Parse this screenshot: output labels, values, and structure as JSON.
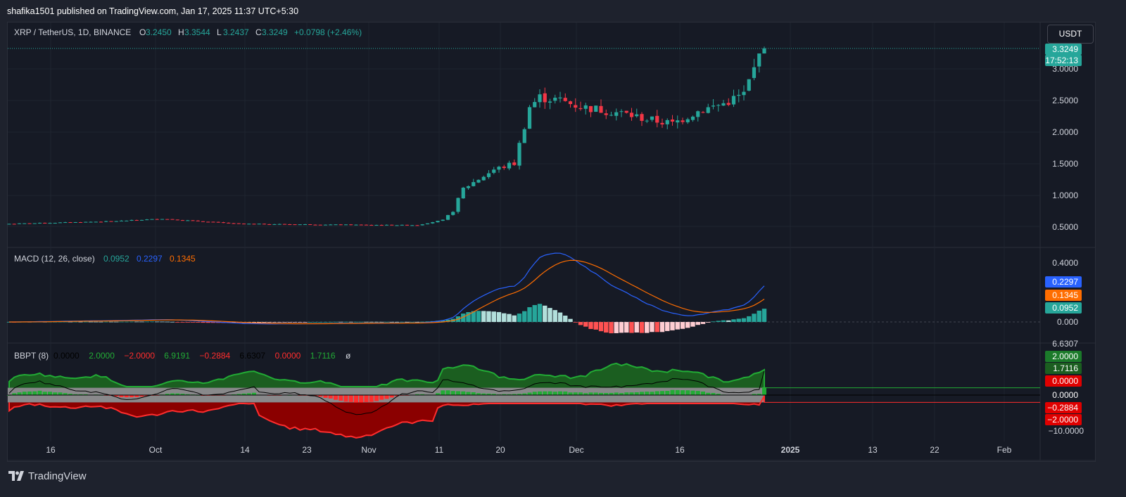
{
  "header": {
    "published_by": "shafika1501 published on TradingView.com, Jan 17, 2025 11:37 UTC+5:30"
  },
  "footer": {
    "brand": "TradingView"
  },
  "currency_button": "USDT",
  "colors": {
    "up": "#26a69a",
    "down": "#f23645",
    "macd_line": "#2962ff",
    "signal_line": "#ff6d00",
    "bbpt_up_fill": "#1b5e20",
    "bbpt_down_fill": "#8b0000",
    "bbpt_up_line": "#22ab35",
    "bbpt_down_line": "#ff2d2d"
  },
  "main_pane": {
    "symbol_legend": "XRP / TetherUS, 1D, BINANCE",
    "ohlc": [
      {
        "k": "O",
        "v": "3.2450"
      },
      {
        "k": "H",
        "v": "3.3544"
      },
      {
        "k": "L",
        "v": "3.2437"
      },
      {
        "k": "C",
        "v": "3.3249"
      }
    ],
    "change": "+0.0798 (+2.46%)",
    "price_ticks": [
      "3.0000",
      "2.5000",
      "2.0000",
      "1.5000",
      "1.0000",
      "0.5000"
    ],
    "last_price_label": "3.3249",
    "countdown_label": "17:52:13"
  },
  "macd_pane": {
    "title": "MACD (12, 26, close)",
    "values": [
      "0.0952",
      "0.2297",
      "0.1345"
    ],
    "ticks": [
      "0.4000",
      "0.000"
    ],
    "labels": {
      "macd": "0.2297",
      "signal": "0.1345",
      "hist": "0.0952"
    }
  },
  "bbpt_pane": {
    "title": "BBPT (8)",
    "values": [
      {
        "v": "0.0000",
        "c": "#000000"
      },
      {
        "v": "2.0000",
        "c": "#22ab35"
      },
      {
        "v": "−2.0000",
        "c": "#ff2d2d"
      },
      {
        "v": "6.9191",
        "c": "#22ab35"
      },
      {
        "v": "−0.2884",
        "c": "#ff2d2d"
      },
      {
        "v": "6.6307",
        "c": "#000000"
      },
      {
        "v": "0.0000",
        "c": "#ff2d2d"
      },
      {
        "v": "1.7116",
        "c": "#22ab35"
      },
      {
        "v": "ø",
        "c": "#d1d4dc"
      }
    ],
    "axis_labels": {
      "top_clipped": "6.6307",
      "plus2": "2.0000",
      "val17": "1.7116",
      "zero_red": "0.0000",
      "zero": "0.0000",
      "neg028": "−0.2884",
      "minus2": "−2.0000",
      "minus10": "−10.0000"
    }
  },
  "time_axis": [
    {
      "label": "16",
      "bold": false
    },
    {
      "label": "Oct",
      "bold": false
    },
    {
      "label": "14",
      "bold": false
    },
    {
      "label": "23",
      "bold": false
    },
    {
      "label": "Nov",
      "bold": false
    },
    {
      "label": "11",
      "bold": false
    },
    {
      "label": "20",
      "bold": false
    },
    {
      "label": "Dec",
      "bold": false
    },
    {
      "label": "16",
      "bold": false
    },
    {
      "label": "2025",
      "bold": true
    },
    {
      "label": "13",
      "bold": false
    },
    {
      "label": "22",
      "bold": false
    },
    {
      "label": "Feb",
      "bold": false
    }
  ],
  "chart_data": {
    "type": "candlestick",
    "series": [
      {
        "name": "XRP / TetherUS",
        "close_points": [
          [
            0,
            0.54
          ],
          [
            20,
            0.58
          ],
          [
            30,
            0.62
          ],
          [
            45,
            0.54
          ],
          [
            60,
            0.53
          ],
          [
            75,
            0.52
          ],
          [
            80,
            0.52
          ],
          [
            85,
            0.6
          ],
          [
            87,
            0.75
          ],
          [
            89,
            1.1
          ],
          [
            95,
            1.4
          ],
          [
            99,
            1.5
          ],
          [
            102,
            2.4
          ],
          [
            104,
            2.55
          ],
          [
            108,
            2.5
          ],
          [
            112,
            2.4
          ],
          [
            120,
            2.3
          ],
          [
            125,
            2.2
          ],
          [
            130,
            2.13
          ],
          [
            135,
            2.33
          ],
          [
            140,
            2.45
          ],
          [
            144,
            2.6
          ],
          [
            146,
            3.0
          ],
          [
            147,
            3.2
          ],
          [
            148,
            3.32
          ]
        ]
      }
    ]
  }
}
